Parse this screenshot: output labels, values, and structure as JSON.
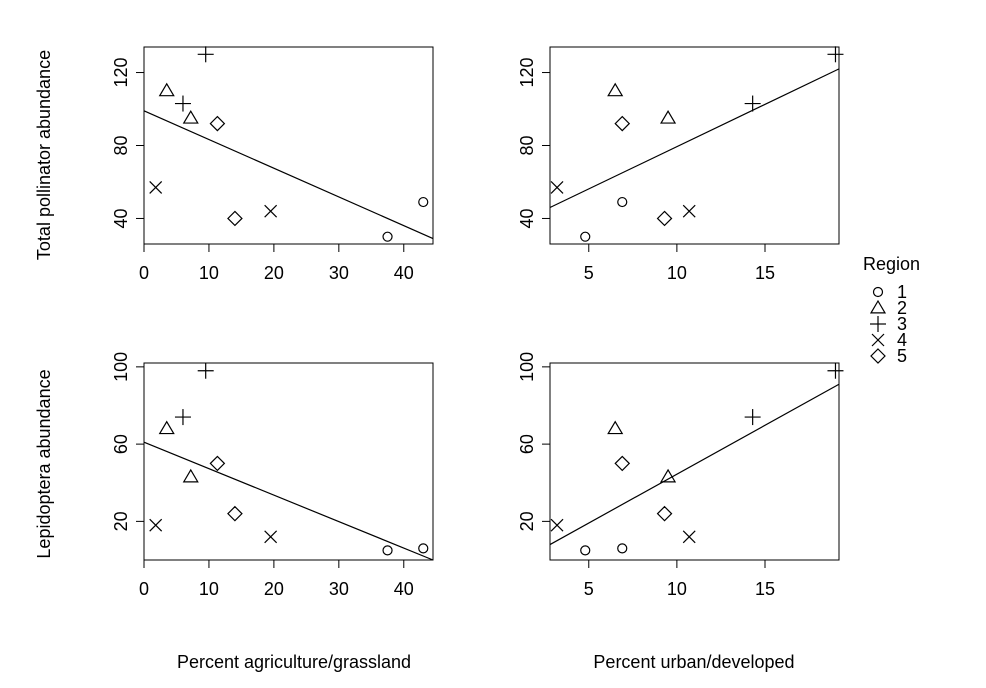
{
  "figure": {
    "xlabels": [
      "Percent agriculture/grassland",
      "Percent urban/developed"
    ],
    "ylabels": [
      "Total pollinator abundance",
      "Lepidoptera abundance"
    ],
    "legend": {
      "title": "Region",
      "placement": "right",
      "entries": [
        {
          "label": "1",
          "symbol": "circle"
        },
        {
          "label": "2",
          "symbol": "triangle"
        },
        {
          "label": "3",
          "symbol": "plus"
        },
        {
          "label": "4",
          "symbol": "cross"
        },
        {
          "label": "5",
          "symbol": "diamond"
        }
      ]
    }
  },
  "chart_data": [
    {
      "type": "scatter",
      "panel": "top-left",
      "xlabel": "",
      "ylabel": "Total pollinator abundance",
      "xlim": [
        0,
        44.5
      ],
      "ylim": [
        26,
        134
      ],
      "xticks": [
        0,
        10,
        20,
        30,
        40
      ],
      "yticks": [
        40,
        80,
        120
      ],
      "grid": false,
      "points": [
        {
          "x": 37.5,
          "y": 30,
          "region": "1"
        },
        {
          "x": 43,
          "y": 49,
          "region": "1"
        },
        {
          "x": 3.5,
          "y": 110,
          "region": "2"
        },
        {
          "x": 7.2,
          "y": 95,
          "region": "2"
        },
        {
          "x": 9.5,
          "y": 130,
          "region": "3"
        },
        {
          "x": 6,
          "y": 103,
          "region": "3"
        },
        {
          "x": 1.8,
          "y": 57,
          "region": "4"
        },
        {
          "x": 19.5,
          "y": 44,
          "region": "4"
        },
        {
          "x": 11.3,
          "y": 92,
          "region": "5"
        },
        {
          "x": 14,
          "y": 40,
          "region": "5"
        }
      ],
      "fit_line": {
        "x": [
          0,
          44.5
        ],
        "y": [
          99,
          29
        ]
      }
    },
    {
      "type": "scatter",
      "panel": "top-right",
      "xlabel": "",
      "ylabel": "",
      "xlim": [
        2.8,
        19.2
      ],
      "ylim": [
        26,
        134
      ],
      "xticks": [
        5,
        10,
        15
      ],
      "yticks": [
        40,
        80,
        120
      ],
      "grid": false,
      "points": [
        {
          "x": 4.8,
          "y": 30,
          "region": "1"
        },
        {
          "x": 6.9,
          "y": 49,
          "region": "1"
        },
        {
          "x": 6.5,
          "y": 110,
          "region": "2"
        },
        {
          "x": 9.5,
          "y": 95,
          "region": "2"
        },
        {
          "x": 19,
          "y": 130,
          "region": "3"
        },
        {
          "x": 14.3,
          "y": 103,
          "region": "3"
        },
        {
          "x": 3.2,
          "y": 57,
          "region": "4"
        },
        {
          "x": 10.7,
          "y": 44,
          "region": "4"
        },
        {
          "x": 6.9,
          "y": 92,
          "region": "5"
        },
        {
          "x": 9.3,
          "y": 40,
          "region": "5"
        }
      ],
      "fit_line": {
        "x": [
          2.8,
          19.2
        ],
        "y": [
          46,
          122
        ]
      }
    },
    {
      "type": "scatter",
      "panel": "bottom-left",
      "xlabel": "Percent agriculture/grassland",
      "ylabel": "Lepidoptera abundance",
      "xlim": [
        0,
        44.5
      ],
      "ylim": [
        0,
        102
      ],
      "xticks": [
        0,
        10,
        20,
        30,
        40
      ],
      "yticks": [
        20,
        60,
        100
      ],
      "grid": false,
      "points": [
        {
          "x": 37.5,
          "y": 5,
          "region": "1"
        },
        {
          "x": 43,
          "y": 6,
          "region": "1"
        },
        {
          "x": 3.5,
          "y": 68,
          "region": "2"
        },
        {
          "x": 7.2,
          "y": 43,
          "region": "2"
        },
        {
          "x": 9.5,
          "y": 98,
          "region": "3"
        },
        {
          "x": 6,
          "y": 74,
          "region": "3"
        },
        {
          "x": 1.8,
          "y": 18,
          "region": "4"
        },
        {
          "x": 19.5,
          "y": 12,
          "region": "4"
        },
        {
          "x": 11.3,
          "y": 50,
          "region": "5"
        },
        {
          "x": 14,
          "y": 24,
          "region": "5"
        }
      ],
      "fit_line": {
        "x": [
          0,
          44.5
        ],
        "y": [
          61,
          0
        ]
      }
    },
    {
      "type": "scatter",
      "panel": "bottom-right",
      "xlabel": "Percent urban/developed",
      "ylabel": "",
      "xlim": [
        2.8,
        19.2
      ],
      "ylim": [
        0,
        102
      ],
      "xticks": [
        5,
        10,
        15
      ],
      "yticks": [
        20,
        60,
        100
      ],
      "grid": false,
      "points": [
        {
          "x": 4.8,
          "y": 5,
          "region": "1"
        },
        {
          "x": 6.9,
          "y": 6,
          "region": "1"
        },
        {
          "x": 6.5,
          "y": 68,
          "region": "2"
        },
        {
          "x": 9.5,
          "y": 43,
          "region": "2"
        },
        {
          "x": 19,
          "y": 98,
          "region": "3"
        },
        {
          "x": 14.3,
          "y": 74,
          "region": "3"
        },
        {
          "x": 3.2,
          "y": 18,
          "region": "4"
        },
        {
          "x": 10.7,
          "y": 12,
          "region": "4"
        },
        {
          "x": 6.9,
          "y": 50,
          "region": "5"
        },
        {
          "x": 9.3,
          "y": 24,
          "region": "5"
        }
      ],
      "fit_line": {
        "x": [
          2.8,
          19.2
        ],
        "y": [
          8,
          91
        ]
      }
    }
  ]
}
